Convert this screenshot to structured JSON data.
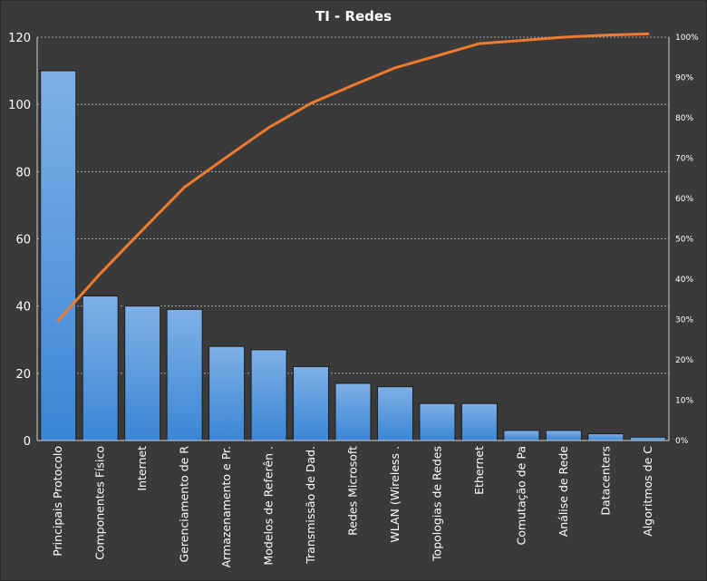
{
  "chart_data": {
    "type": "bar",
    "title": "TI - Redes",
    "categories": [
      "Principais Protocolo",
      "Componentes Físico",
      "Internet",
      "Gerenciamento de R",
      "Armazenamento  e Pr.",
      "Modelos de Referên .",
      "Transmissão de Dad.",
      "Redes Microsoft",
      "WLAN (Wireless .",
      "Topologias de Redes",
      "Ethernet",
      "Comutação de Pa",
      "Análise de Rede",
      "Datacenters",
      "Algoritmos de C"
    ],
    "series": [
      {
        "type": "bar",
        "values": [
          110,
          43,
          40,
          39,
          28,
          27,
          22,
          17,
          16,
          11,
          11,
          3,
          3,
          2,
          1
        ]
      },
      {
        "type": "line",
        "axis": "right",
        "values": [
          29.7,
          41.4,
          52.2,
          62.8,
          70.3,
          77.6,
          83.6,
          88.1,
          92.4,
          95.4,
          98.4,
          99.2,
          100.0,
          100.5,
          100.8
        ]
      }
    ],
    "ylim": [
      0,
      120
    ],
    "yticks": [
      "0",
      "20",
      "40",
      "60",
      "80",
      "100",
      "120"
    ],
    "y2lim": [
      0,
      100
    ],
    "y2ticks": [
      "0%",
      "10%",
      "20%",
      "30%",
      "40%",
      "50%",
      "60%",
      "70%",
      "80%",
      "90%",
      "100%"
    ],
    "grid": true,
    "legend": "none",
    "colors": {
      "background": "#3a3a3a",
      "bar_top": "#7fb0e6",
      "bar_bottom": "#3a86d6",
      "line": "#ee7b2e",
      "grid": "#bdbdbd",
      "text": "#ffffff"
    }
  }
}
